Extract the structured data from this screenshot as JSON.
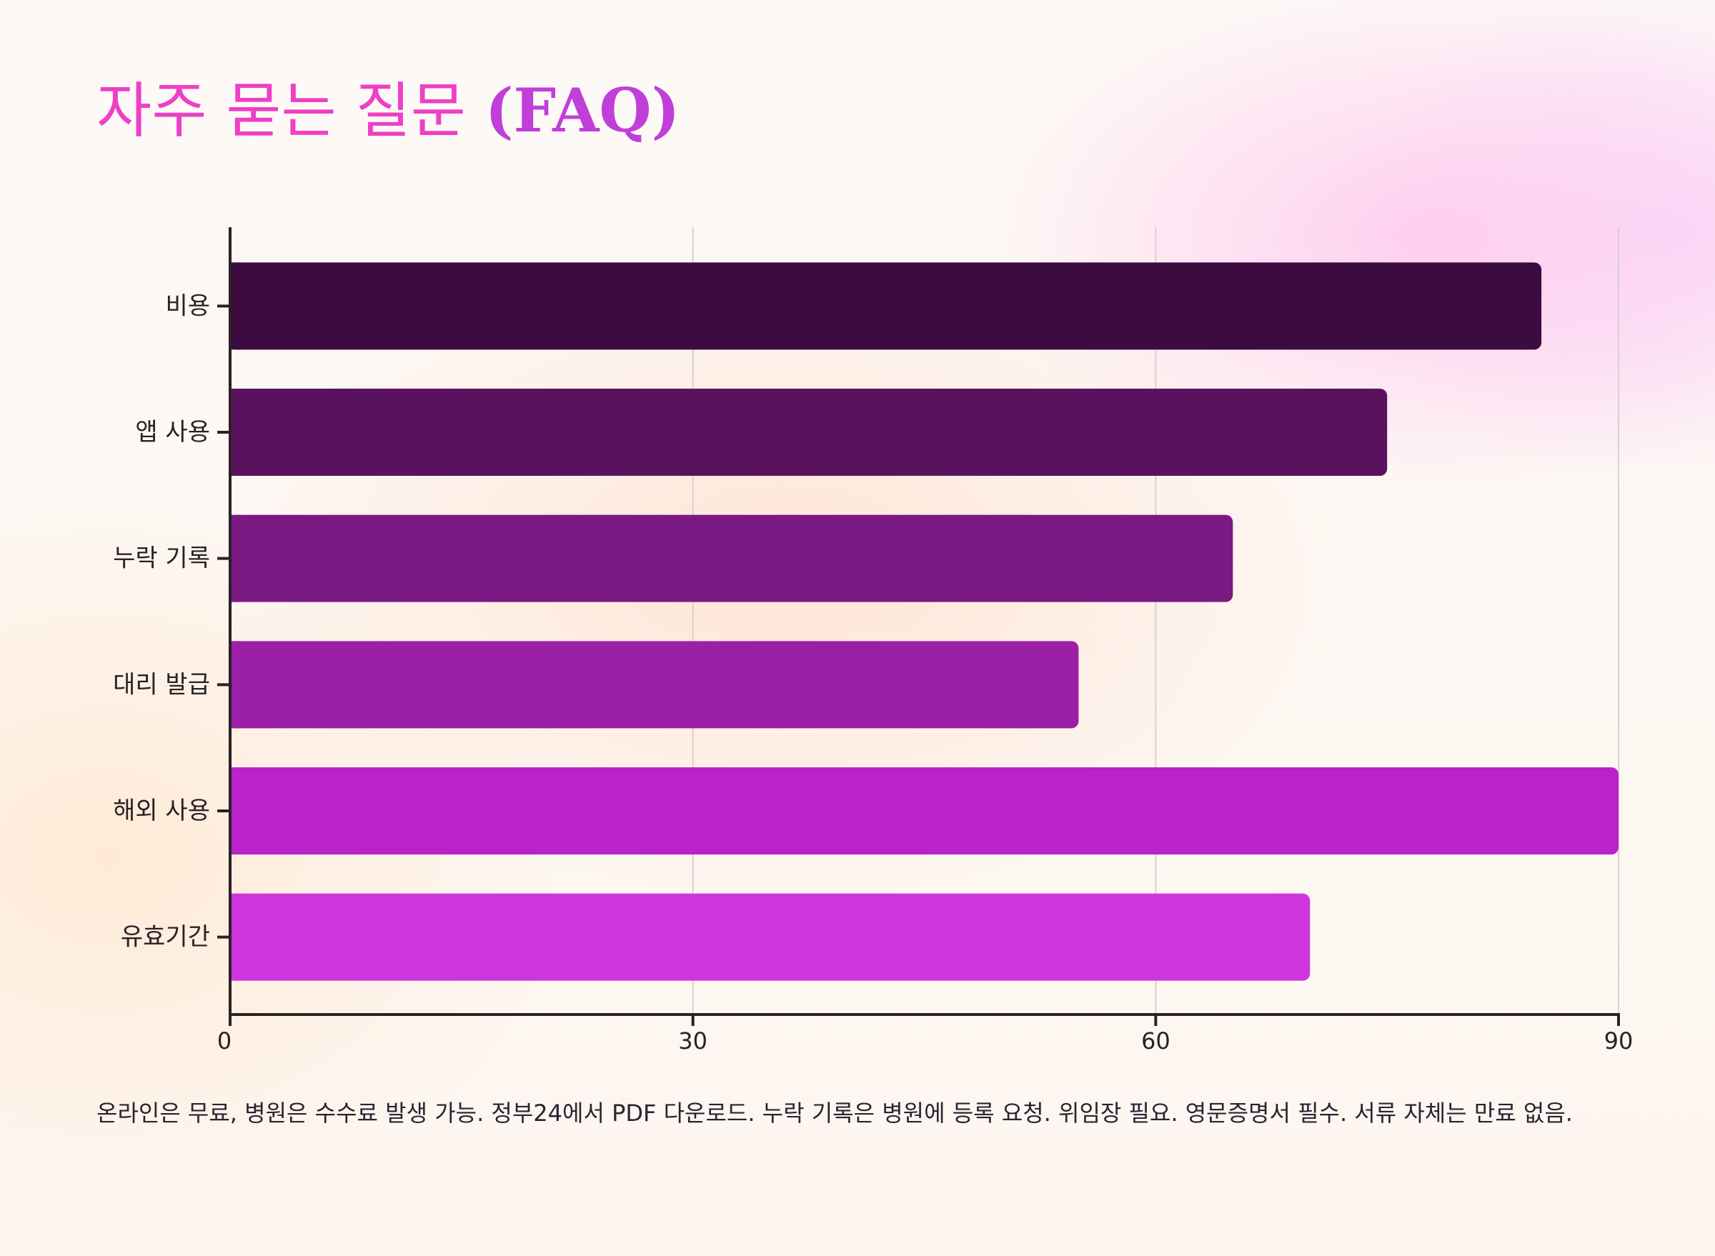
{
  "title": {
    "main": "자주 묻는 질문",
    "paren": "(FAQ)"
  },
  "caption": "온라인은 무료, 병원은 수수료 발생 가능. 정부24에서 PDF 다운로드. 누락 기록은 병원에 등록 요청. 위임장 필요. 영문증명서 필수. 서류 자체는 만료 없음.",
  "colors": {
    "title_main": "#ee3fc6",
    "title_paren": "#c13fd9",
    "bars": [
      "#3c0b3f",
      "#5a125e",
      "#7b1a83",
      "#9c1fa7",
      "#b923c9",
      "#cc36dc"
    ],
    "grid": "#d9d0d2",
    "axis": "#2a2125"
  },
  "chart_data": {
    "type": "bar",
    "orientation": "horizontal",
    "categories": [
      "비용",
      "앱 사용",
      "누락 기록",
      "대리 발급",
      "해외 사용",
      "유효기간"
    ],
    "values": [
      85,
      75,
      65,
      55,
      90,
      70
    ],
    "xlim": [
      0,
      90
    ],
    "xticks": [
      0,
      30,
      60,
      90
    ],
    "xtick_labels": [
      "0",
      "30",
      "60",
      "90"
    ],
    "grid": "vertical",
    "xlabel": "",
    "ylabel": "",
    "legend": "none"
  }
}
